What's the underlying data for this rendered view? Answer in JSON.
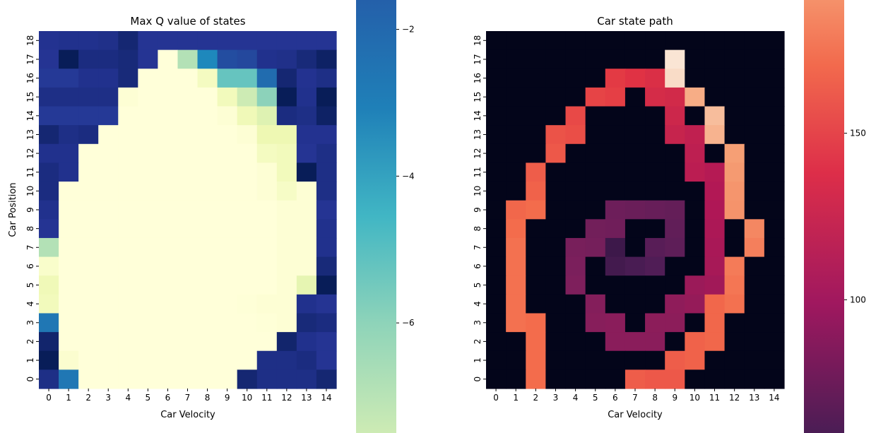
{
  "charts": [
    {
      "type": "heatmap",
      "title": "Max Q value of states",
      "xlabel": "Car Velocity",
      "ylabel": "Car Position",
      "x_ticks": [
        "0",
        "1",
        "2",
        "3",
        "4",
        "5",
        "6",
        "7",
        "8",
        "9",
        "10",
        "11",
        "12",
        "13",
        "14"
      ],
      "y_ticks": [
        "0",
        "1",
        "2",
        "3",
        "4",
        "5",
        "6",
        "7",
        "8",
        "9",
        "10",
        "11",
        "12",
        "13",
        "14",
        "15",
        "16",
        "17",
        "18"
      ],
      "colormap": "YlGnBu",
      "colorbar": {
        "min": -7.5,
        "max": -1.6,
        "ticks": [
          -2,
          -4,
          -6
        ],
        "tick_labels": [
          "−2",
          "−4",
          "−6"
        ]
      },
      "rows_from_top": [
        [
          -1.85,
          -1.8,
          -1.8,
          -1.75,
          -1.4,
          -1.9,
          -1.9,
          -1.9,
          -1.9,
          -1.9,
          -1.9,
          -1.9,
          -1.9,
          -1.9,
          -1.9
        ],
        [
          -1.9,
          -1.0,
          -1.6,
          -1.6,
          -1.5,
          -1.9,
          -8.0,
          -6.0,
          -3.5,
          -2.4,
          -2.3,
          -1.8,
          -1.75,
          -1.5,
          -1.2
        ],
        [
          -2.0,
          -2.0,
          -1.8,
          -1.8,
          -1.5,
          -8.0,
          -8.0,
          -8.0,
          -7.5,
          -5.0,
          -5.0,
          -3.0,
          -1.4,
          -1.85,
          -1.7
        ],
        [
          -1.7,
          -1.7,
          -1.7,
          -1.7,
          -7.9,
          -8.0,
          -8.0,
          -8.0,
          -8.0,
          -7.4,
          -6.4,
          -5.5,
          -1.0,
          -1.8,
          -1.0
        ],
        [
          -2.0,
          -2.0,
          -2.0,
          -2.0,
          -8.0,
          -8.0,
          -8.0,
          -8.0,
          -8.0,
          -7.9,
          -7.3,
          -6.8,
          -1.6,
          -1.7,
          -1.2
        ],
        [
          -1.4,
          -1.7,
          -1.6,
          -8.0,
          -8.0,
          -8.0,
          -8.0,
          -8.0,
          -8.0,
          -8.0,
          -7.9,
          -7.2,
          -7.2,
          -1.85,
          -1.85
        ],
        [
          -1.8,
          -1.8,
          -8.0,
          -8.0,
          -8.0,
          -8.0,
          -8.0,
          -8.0,
          -8.0,
          -8.0,
          -8.0,
          -7.5,
          -7.4,
          -1.9,
          -1.7
        ],
        [
          -1.6,
          -1.8,
          -8.0,
          -8.0,
          -8.0,
          -8.0,
          -8.0,
          -8.0,
          -8.0,
          -8.0,
          -8.0,
          -7.9,
          -7.4,
          -1.0,
          -1.7
        ],
        [
          -1.6,
          -8.0,
          -8.0,
          -8.0,
          -8.0,
          -8.0,
          -8.0,
          -8.0,
          -8.0,
          -8.0,
          -8.0,
          -7.9,
          -7.6,
          -7.9,
          -1.7
        ],
        [
          -1.8,
          -8.0,
          -8.0,
          -8.0,
          -8.0,
          -8.0,
          -8.0,
          -8.0,
          -8.0,
          -8.0,
          -8.0,
          -8.0,
          -7.9,
          -7.9,
          -1.9
        ],
        [
          -1.9,
          -8.0,
          -8.0,
          -8.0,
          -8.0,
          -8.0,
          -8.0,
          -8.0,
          -8.0,
          -8.0,
          -8.0,
          -8.0,
          -7.9,
          -7.9,
          -1.8
        ],
        [
          -6.0,
          -8.0,
          -8.0,
          -8.0,
          -8.0,
          -8.0,
          -8.0,
          -8.0,
          -8.0,
          -8.0,
          -8.0,
          -8.0,
          -7.9,
          -7.9,
          -1.8
        ],
        [
          -7.7,
          -8.0,
          -8.0,
          -8.0,
          -8.0,
          -8.0,
          -8.0,
          -8.0,
          -8.0,
          -8.0,
          -8.0,
          -8.0,
          -7.9,
          -7.9,
          -1.5
        ],
        [
          -7.3,
          -8.0,
          -8.0,
          -8.0,
          -8.0,
          -8.0,
          -8.0,
          -8.0,
          -8.0,
          -8.0,
          -8.0,
          -8.0,
          -7.9,
          -7.0,
          -1.0
        ],
        [
          -7.4,
          -8.0,
          -8.0,
          -8.0,
          -8.0,
          -8.0,
          -8.0,
          -8.0,
          -8.0,
          -8.0,
          -7.95,
          -7.9,
          -7.9,
          -1.8,
          -1.9
        ],
        [
          -3.2,
          -8.0,
          -8.0,
          -8.0,
          -8.0,
          -8.0,
          -8.0,
          -8.0,
          -8.0,
          -8.0,
          -8.0,
          -7.95,
          -7.9,
          -1.5,
          -1.6
        ],
        [
          -1.3,
          -8.0,
          -8.0,
          -8.0,
          -8.0,
          -8.0,
          -8.0,
          -8.0,
          -8.0,
          -8.0,
          -8.0,
          -8.0,
          -1.3,
          -1.8,
          -1.9
        ],
        [
          -1.0,
          -7.8,
          -8.0,
          -8.0,
          -8.0,
          -8.0,
          -8.0,
          -8.0,
          -8.0,
          -8.0,
          -8.0,
          -1.7,
          -1.7,
          -1.6,
          -1.9
        ],
        [
          -1.7,
          -3.2,
          -8.0,
          -8.0,
          -8.0,
          -8.0,
          -8.0,
          -8.0,
          -8.0,
          -8.0,
          -1.4,
          -1.7,
          -1.7,
          -1.7,
          -1.4
        ]
      ]
    },
    {
      "type": "heatmap",
      "title": "Car state path",
      "xlabel": "Car Velocity",
      "ylabel": "",
      "x_ticks": [
        "0",
        "1",
        "2",
        "3",
        "4",
        "5",
        "6",
        "7",
        "8",
        "9",
        "10",
        "11",
        "12",
        "13",
        "14"
      ],
      "y_ticks": [
        "0",
        "1",
        "2",
        "3",
        "4",
        "5",
        "6",
        "7",
        "8",
        "9",
        "10",
        "11",
        "12",
        "13",
        "14",
        "15",
        "16",
        "17",
        "18"
      ],
      "colormap": "rocket",
      "colorbar": {
        "min": 60,
        "max": 190,
        "ticks": [
          100,
          150
        ],
        "tick_labels": [
          "100",
          "150"
        ]
      },
      "rows_from_top": [
        [
          0,
          0,
          0,
          0,
          0,
          0,
          0,
          0,
          0,
          0,
          0,
          0,
          0,
          0,
          0
        ],
        [
          0,
          0,
          0,
          0,
          0,
          0,
          0,
          0,
          0,
          228,
          0,
          0,
          0,
          0,
          0
        ],
        [
          0,
          0,
          0,
          0,
          0,
          0,
          164,
          160,
          156,
          225,
          0,
          0,
          0,
          0,
          0
        ],
        [
          0,
          0,
          0,
          0,
          0,
          168,
          166,
          0,
          152,
          150,
          210,
          0,
          0,
          0,
          0
        ],
        [
          0,
          0,
          0,
          0,
          170,
          0,
          0,
          0,
          0,
          146,
          0,
          215,
          0,
          0,
          0
        ],
        [
          0,
          0,
          0,
          174,
          172,
          0,
          0,
          0,
          0,
          142,
          138,
          212,
          0,
          0,
          0
        ],
        [
          0,
          0,
          0,
          176,
          0,
          0,
          0,
          0,
          0,
          0,
          136,
          0,
          205,
          0,
          0
        ],
        [
          0,
          0,
          178,
          0,
          0,
          0,
          0,
          0,
          0,
          0,
          134,
          130,
          203,
          0,
          0
        ],
        [
          0,
          0,
          180,
          0,
          0,
          0,
          0,
          0,
          0,
          0,
          0,
          128,
          201,
          0,
          0
        ],
        [
          0,
          182,
          184,
          0,
          0,
          0,
          80,
          78,
          76,
          74,
          0,
          126,
          200,
          0,
          0
        ],
        [
          0,
          184,
          0,
          0,
          0,
          84,
          82,
          0,
          0,
          72,
          0,
          124,
          0,
          195,
          0
        ],
        [
          0,
          186,
          0,
          0,
          88,
          86,
          45,
          0,
          66,
          70,
          0,
          122,
          0,
          192,
          0
        ],
        [
          0,
          186,
          0,
          0,
          90,
          0,
          50,
          55,
          60,
          0,
          0,
          120,
          190,
          0,
          0
        ],
        [
          0,
          186,
          0,
          0,
          92,
          0,
          0,
          0,
          0,
          0,
          112,
          116,
          188,
          0,
          0
        ],
        [
          0,
          186,
          0,
          0,
          0,
          96,
          0,
          0,
          0,
          104,
          108,
          182,
          186,
          0,
          0
        ],
        [
          0,
          186,
          184,
          0,
          0,
          98,
          100,
          0,
          102,
          102,
          0,
          182,
          0,
          0,
          0
        ],
        [
          0,
          0,
          184,
          0,
          0,
          0,
          100,
          100,
          100,
          0,
          180,
          182,
          0,
          0,
          0
        ],
        [
          0,
          0,
          184,
          0,
          0,
          0,
          0,
          0,
          0,
          178,
          180,
          0,
          0,
          0,
          0
        ],
        [
          0,
          0,
          184,
          0,
          0,
          0,
          0,
          178,
          176,
          176,
          0,
          0,
          0,
          0,
          0
        ]
      ]
    }
  ]
}
